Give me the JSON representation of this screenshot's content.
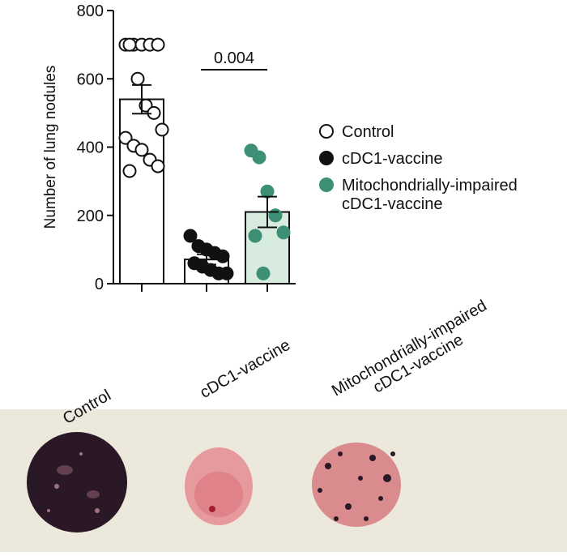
{
  "chart_data": {
    "type": "bar_scatter",
    "y_label": "Number of lung nodules",
    "ylim": [
      0,
      800
    ],
    "yticks": [
      0,
      200,
      400,
      600,
      800
    ],
    "annotation": "0.004",
    "categories": [
      [
        "Control"
      ],
      [
        "cDC1-vaccine"
      ],
      [
        "Mitochondrially-impaired",
        "cDC1-vaccine"
      ]
    ],
    "series": [
      {
        "name": [
          "Control"
        ],
        "color": "#ffffff",
        "stroke": "#111111",
        "bar_fill": "#ffffff",
        "mean": 540,
        "sem": 42,
        "values": [
          700,
          700,
          700,
          700,
          700,
          700,
          600,
          522,
          500,
          451,
          427,
          404,
          392,
          363,
          344,
          330
        ]
      },
      {
        "name": [
          "cDC1-vaccine"
        ],
        "color": "#111111",
        "stroke": "#111111",
        "bar_fill": "#ffffff",
        "mean": 71,
        "sem": 15,
        "values": [
          140,
          110,
          100,
          90,
          80,
          60,
          50,
          40,
          30,
          30
        ]
      },
      {
        "name": [
          "Mitochondrially-impaired",
          "cDC1-vaccine"
        ],
        "color": "#3d8f76",
        "stroke": "#3d8f76",
        "bar_fill": "#d7ebdf",
        "mean": 210,
        "sem": 45,
        "values": [
          390,
          370,
          270,
          200,
          150,
          140,
          30
        ]
      }
    ]
  }
}
